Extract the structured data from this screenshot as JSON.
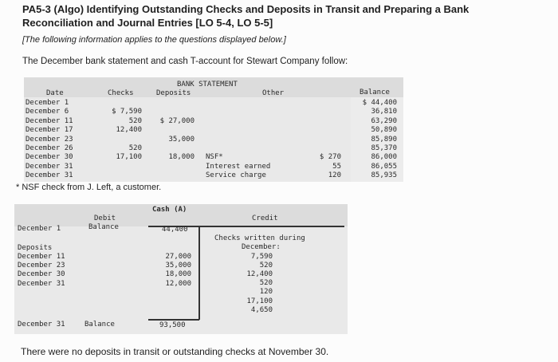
{
  "problem": {
    "title": "PA5-3 (Algo) Identifying Outstanding Checks and Deposits in Transit and Preparing a Bank Reconciliation and Journal Entries [LO 5-4, LO 5-5]",
    "note": "[The following information applies to the questions displayed below.]",
    "intro": "The December bank statement and cash T-account for Stewart Company follow:",
    "footnote": "NSF check from J. Left, a customer.",
    "bottom_text": "There were no deposits in transit or outstanding checks at November 30."
  },
  "bank_statement": {
    "caption": "BANK STATEMENT",
    "headers": {
      "date": "Date",
      "checks": "Checks",
      "deposits": "Deposits",
      "other": "Other",
      "balance": "Balance"
    },
    "rows": [
      {
        "date": "December 1",
        "checks": "",
        "deposits": "",
        "other_label": "",
        "other_amount": "",
        "balance": "$ 44,400"
      },
      {
        "date": "December 6",
        "checks": "$ 7,590",
        "deposits": "",
        "other_label": "",
        "other_amount": "",
        "balance": "36,810"
      },
      {
        "date": "December 11",
        "checks": "520",
        "deposits": "$ 27,000",
        "other_label": "",
        "other_amount": "",
        "balance": "63,290"
      },
      {
        "date": "December 17",
        "checks": "12,400",
        "deposits": "",
        "other_label": "",
        "other_amount": "",
        "balance": "50,890"
      },
      {
        "date": "December 23",
        "checks": "",
        "deposits": "35,000",
        "other_label": "",
        "other_amount": "",
        "balance": "85,890"
      },
      {
        "date": "December 26",
        "checks": "520",
        "deposits": "",
        "other_label": "",
        "other_amount": "",
        "balance": "85,370"
      },
      {
        "date": "December 30",
        "checks": "17,100",
        "deposits": "18,000",
        "other_label": "NSF*",
        "other_amount": "$ 270",
        "balance": "86,000"
      },
      {
        "date": "December 31",
        "checks": "",
        "deposits": "",
        "other_label": "Interest earned",
        "other_amount": "55",
        "balance": "86,055"
      },
      {
        "date": "December 31",
        "checks": "",
        "deposits": "",
        "other_label": "Service charge",
        "other_amount": "120",
        "balance": "85,935"
      }
    ]
  },
  "cash_account": {
    "caption": "Cash (A)",
    "debit_header": [
      "Debit",
      "Balance"
    ],
    "credit_header": "Credit",
    "opening_date": "December 1",
    "opening_balance": "44,400",
    "deposits_label": "Deposits",
    "deposits": [
      {
        "date": "December 11",
        "amount": "27,000"
      },
      {
        "date": "December 23",
        "amount": "35,000"
      },
      {
        "date": "December 30",
        "amount": "18,000"
      },
      {
        "date": "December 31",
        "amount": "12,000"
      }
    ],
    "credit_label": [
      "Checks written during",
      "December:"
    ],
    "checks_written": [
      "7,590",
      "520",
      "12,400",
      "520",
      "120",
      "17,100",
      "4,650"
    ],
    "closing_date": "December 31",
    "closing_label": "Balance",
    "closing_balance": "93,500"
  }
}
